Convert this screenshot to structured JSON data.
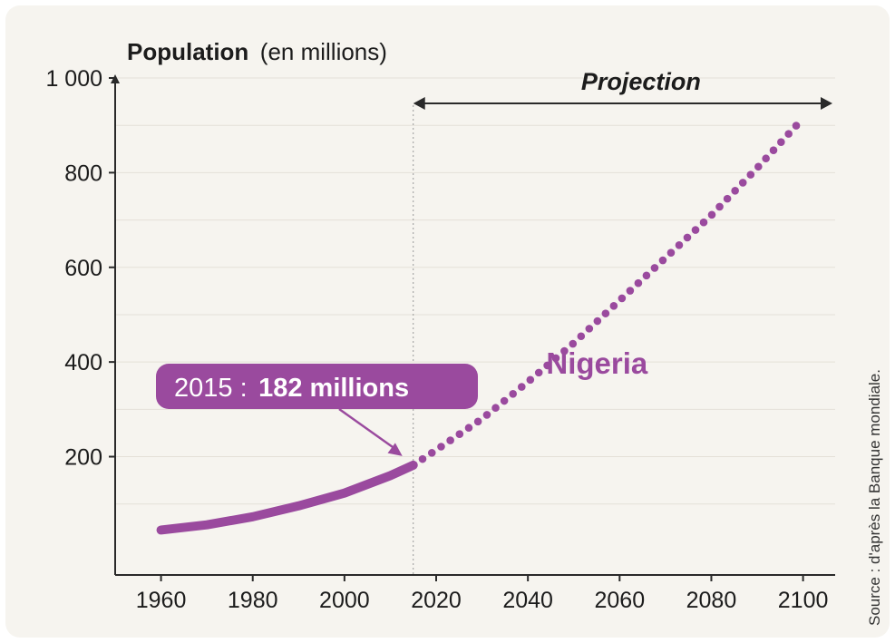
{
  "colors": {
    "series": "#9a4a9e",
    "axis": "#2a2a2a",
    "grid": "#e4e0d8",
    "background": "#f6f4ef"
  },
  "chart_data": {
    "type": "line",
    "title_main": "Population",
    "title_unit": "(en millions)",
    "ylabel": "Population (en millions)",
    "xlabel": "",
    "xlim": [
      1950,
      2107
    ],
    "ylim": [
      -50,
      1000
    ],
    "x_ticks": [
      1960,
      1980,
      2000,
      2020,
      2040,
      2060,
      2080,
      2100
    ],
    "y_ticks": [
      200,
      400,
      600,
      800,
      1000
    ],
    "y_tick_labels": [
      "200",
      "400",
      "600",
      "800",
      "1 000"
    ],
    "grid": true,
    "projection_label": "Projection",
    "projection_start": 2015,
    "series": [
      {
        "name": "Nigeria",
        "observed": {
          "x": [
            1960,
            1970,
            1980,
            1990,
            2000,
            2010,
            2015
          ],
          "y": [
            45,
            56,
            73,
            96,
            123,
            160,
            182
          ]
        },
        "projection": {
          "x": [
            2015,
            2020,
            2030,
            2040,
            2050,
            2060,
            2070,
            2080,
            2090,
            2100
          ],
          "y": [
            182,
            214,
            280,
            358,
            440,
            530,
            620,
            710,
            810,
            915
          ]
        }
      }
    ],
    "annotations": [
      {
        "year_text": "2015 :",
        "value_text": "182 millions",
        "x": 2015,
        "y": 182
      }
    ],
    "source": "Source : d'après la Banque mondiale."
  }
}
